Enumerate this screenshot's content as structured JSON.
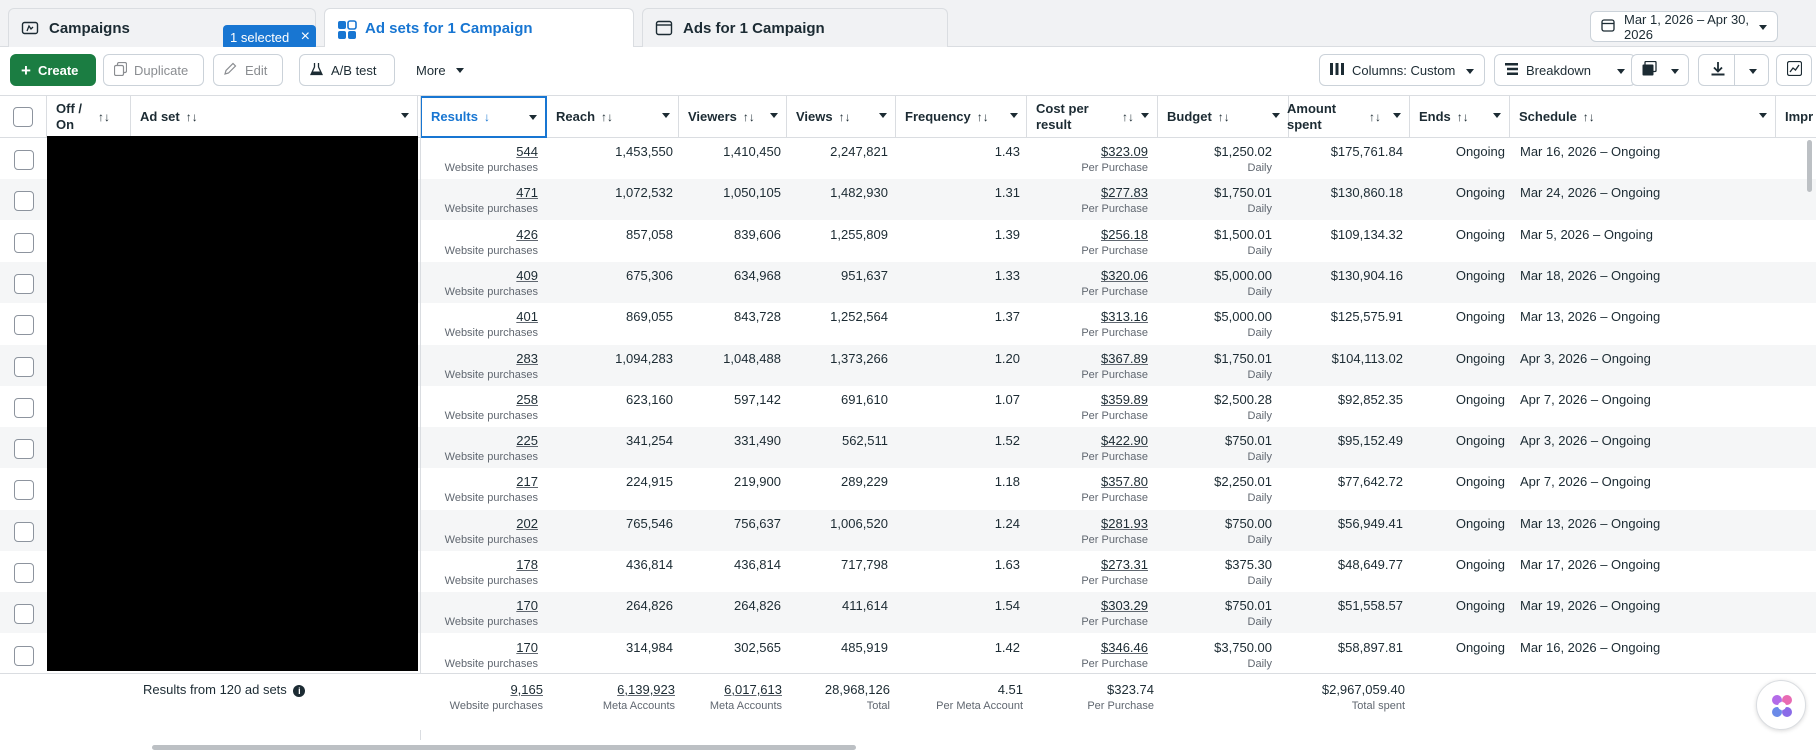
{
  "tabs": {
    "campaigns": "Campaigns",
    "selected_chip": "1 selected",
    "adsets": "Ad sets for 1 Campaign",
    "ads": "Ads for 1 Campaign"
  },
  "date_range": "Mar 1, 2026 – Apr 30, 2026",
  "toolbar": {
    "create": "Create",
    "duplicate": "Duplicate",
    "edit": "Edit",
    "ab_test": "A/B test",
    "more": "More",
    "columns": "Columns: Custom",
    "breakdown": "Breakdown"
  },
  "columns": {
    "offon": "Off / On",
    "adset": "Ad set",
    "results": "Results",
    "reach": "Reach",
    "viewers": "Viewers",
    "views": "Views",
    "frequency": "Frequency",
    "cpr": "Cost per result",
    "budget": "Budget",
    "amount": "Amount spent",
    "ends": "Ends",
    "schedule": "Schedule",
    "impr": "Impr"
  },
  "row_labels": {
    "results_sub": "Website purchases",
    "cpr_sub": "Per Purchase",
    "budget_sub": "Daily"
  },
  "rows": [
    {
      "results": "544",
      "reach": "1,453,550",
      "viewers": "1,410,450",
      "views": "2,247,821",
      "frequency": "1.43",
      "cpr": "$323.09",
      "budget": "$1,250.02",
      "amount": "$175,761.84",
      "ends": "Ongoing",
      "schedule": "Mar 16, 2026 – Ongoing"
    },
    {
      "results": "471",
      "reach": "1,072,532",
      "viewers": "1,050,105",
      "views": "1,482,930",
      "frequency": "1.31",
      "cpr": "$277.83",
      "budget": "$1,750.01",
      "amount": "$130,860.18",
      "ends": "Ongoing",
      "schedule": "Mar 24, 2026 – Ongoing"
    },
    {
      "results": "426",
      "reach": "857,058",
      "viewers": "839,606",
      "views": "1,255,809",
      "frequency": "1.39",
      "cpr": "$256.18",
      "budget": "$1,500.01",
      "amount": "$109,134.32",
      "ends": "Ongoing",
      "schedule": "Mar 5, 2026 – Ongoing"
    },
    {
      "results": "409",
      "reach": "675,306",
      "viewers": "634,968",
      "views": "951,637",
      "frequency": "1.33",
      "cpr": "$320.06",
      "budget": "$5,000.00",
      "amount": "$130,904.16",
      "ends": "Ongoing",
      "schedule": "Mar 18, 2026 – Ongoing"
    },
    {
      "results": "401",
      "reach": "869,055",
      "viewers": "843,728",
      "views": "1,252,564",
      "frequency": "1.37",
      "cpr": "$313.16",
      "budget": "$5,000.00",
      "amount": "$125,575.91",
      "ends": "Ongoing",
      "schedule": "Mar 13, 2026 – Ongoing"
    },
    {
      "results": "283",
      "reach": "1,094,283",
      "viewers": "1,048,488",
      "views": "1,373,266",
      "frequency": "1.20",
      "cpr": "$367.89",
      "budget": "$1,750.01",
      "amount": "$104,113.02",
      "ends": "Ongoing",
      "schedule": "Apr 3, 2026 – Ongoing"
    },
    {
      "results": "258",
      "reach": "623,160",
      "viewers": "597,142",
      "views": "691,610",
      "frequency": "1.07",
      "cpr": "$359.89",
      "budget": "$2,500.28",
      "amount": "$92,852.35",
      "ends": "Ongoing",
      "schedule": "Apr 7, 2026 – Ongoing"
    },
    {
      "results": "225",
      "reach": "341,254",
      "viewers": "331,490",
      "views": "562,511",
      "frequency": "1.52",
      "cpr": "$422.90",
      "budget": "$750.01",
      "amount": "$95,152.49",
      "ends": "Ongoing",
      "schedule": "Apr 3, 2026 – Ongoing"
    },
    {
      "results": "217",
      "reach": "224,915",
      "viewers": "219,900",
      "views": "289,229",
      "frequency": "1.18",
      "cpr": "$357.80",
      "budget": "$2,250.01",
      "amount": "$77,642.72",
      "ends": "Ongoing",
      "schedule": "Apr 7, 2026 – Ongoing"
    },
    {
      "results": "202",
      "reach": "765,546",
      "viewers": "756,637",
      "views": "1,006,520",
      "frequency": "1.24",
      "cpr": "$281.93",
      "budget": "$750.00",
      "amount": "$56,949.41",
      "ends": "Ongoing",
      "schedule": "Mar 13, 2026 – Ongoing"
    },
    {
      "results": "178",
      "reach": "436,814",
      "viewers": "436,814",
      "views": "717,798",
      "frequency": "1.63",
      "cpr": "$273.31",
      "budget": "$375.30",
      "amount": "$48,649.77",
      "ends": "Ongoing",
      "schedule": "Mar 17, 2026 – Ongoing"
    },
    {
      "results": "170",
      "reach": "264,826",
      "viewers": "264,826",
      "views": "411,614",
      "frequency": "1.54",
      "cpr": "$303.29",
      "budget": "$750.01",
      "amount": "$51,558.57",
      "ends": "Ongoing",
      "schedule": "Mar 19, 2026 – Ongoing"
    },
    {
      "results": "170",
      "reach": "314,984",
      "viewers": "302,565",
      "views": "485,919",
      "frequency": "1.42",
      "cpr": "$346.46",
      "budget": "$3,750.00",
      "amount": "$58,897.81",
      "ends": "Ongoing",
      "schedule": "Mar 16, 2026 – Ongoing"
    }
  ],
  "footer": {
    "label": "Results from 120 ad sets",
    "results": "9,165",
    "results_sub": "Website purchases",
    "reach": "6,139,923",
    "reach_sub": "Meta Accounts",
    "viewers": "6,017,613",
    "viewers_sub": "Meta Accounts",
    "views": "28,968,126",
    "views_sub": "Total",
    "frequency": "4.51",
    "frequency_sub": "Per Meta Account",
    "cpr": "$323.74",
    "cpr_sub": "Per Purchase",
    "amount": "$2,967,059.40",
    "amount_sub": "Total spent"
  },
  "colors": {
    "accent": "#1876d2",
    "create": "#1b7d42"
  }
}
